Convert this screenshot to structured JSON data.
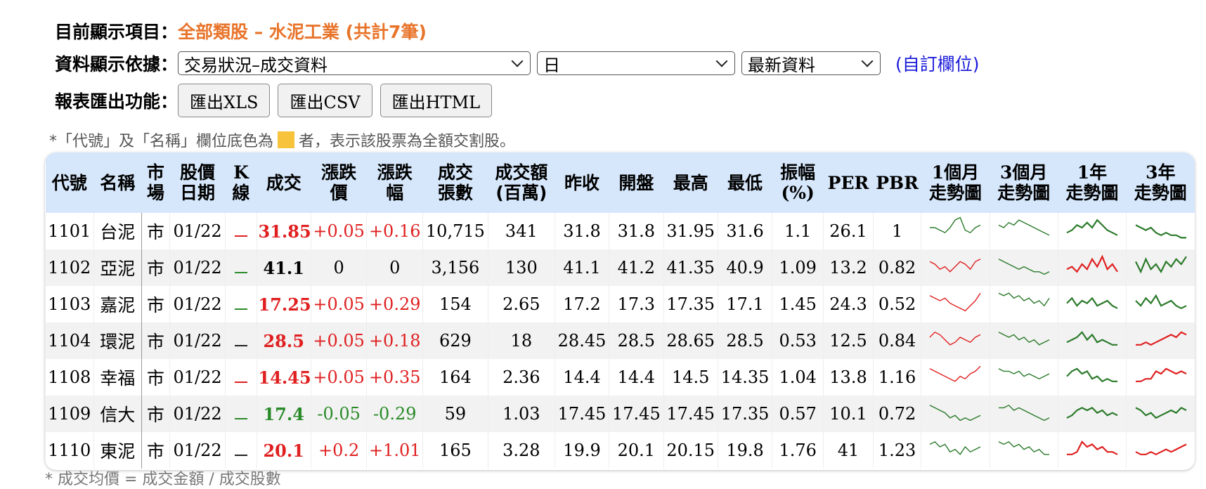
{
  "header": {
    "current_label": "目前顯示項目：",
    "current_value": "全部類股 – 水泥工業 (共計7筆)",
    "basis_label": "資料顯示依據：",
    "select_type": "交易狀況–成交資料",
    "select_period": "日",
    "select_data": "最新資料",
    "custom_link": "(自訂欄位)",
    "export_label": "報表匯出功能：",
    "export_xls": "匯出XLS",
    "export_csv": "匯出CSV",
    "export_html": "匯出HTML"
  },
  "note": {
    "prefix": "*「代號」及「名稱」欄位底色為",
    "suffix": "者，表示該股票為全額交割股。",
    "swatch_color": "#f7c33b"
  },
  "footnote": "* 成交均價 = 成交金額 / 成交股數",
  "columns": [
    "代號",
    "名稱",
    "市場",
    "股價日期",
    "K線",
    "成交",
    "漲跌價",
    "漲跌幅",
    "成交張數",
    "成交額(百萬)",
    "昨收",
    "開盤",
    "最高",
    "最低",
    "振幅(%)",
    "PER",
    "PBR",
    "1個月走勢圖",
    "3個月走勢圖",
    "1年走勢圖",
    "3年走勢圖"
  ],
  "rows": [
    {
      "code": "1101",
      "name": "台泥",
      "market": "市",
      "date": "01/22",
      "price": "31.85",
      "change": "+0.05",
      "pct": "+0.16",
      "vol": "10,715",
      "amt": "341",
      "prev": "31.8",
      "open": "31.8",
      "high": "31.95",
      "low": "31.6",
      "amp": "1.1",
      "per": "26.1",
      "pbr": "1",
      "dir": "up",
      "k": "red"
    },
    {
      "code": "1102",
      "name": "亞泥",
      "market": "市",
      "date": "01/22",
      "price": "41.1",
      "change": "0",
      "pct": "0",
      "vol": "3,156",
      "amt": "130",
      "prev": "41.1",
      "open": "41.2",
      "high": "41.35",
      "low": "40.9",
      "amp": "1.09",
      "per": "13.2",
      "pbr": "0.82",
      "dir": "flat",
      "k": "grn"
    },
    {
      "code": "1103",
      "name": "嘉泥",
      "market": "市",
      "date": "01/22",
      "price": "17.25",
      "change": "+0.05",
      "pct": "+0.29",
      "vol": "154",
      "amt": "2.65",
      "prev": "17.2",
      "open": "17.3",
      "high": "17.35",
      "low": "17.1",
      "amp": "1.45",
      "per": "24.3",
      "pbr": "0.52",
      "dir": "up",
      "k": "grn"
    },
    {
      "code": "1104",
      "name": "環泥",
      "market": "市",
      "date": "01/22",
      "price": "28.5",
      "change": "+0.05",
      "pct": "+0.18",
      "vol": "629",
      "amt": "18",
      "prev": "28.45",
      "open": "28.5",
      "high": "28.65",
      "low": "28.5",
      "amp": "0.53",
      "per": "12.5",
      "pbr": "0.84",
      "dir": "up",
      "k": "blk"
    },
    {
      "code": "1108",
      "name": "幸福",
      "market": "市",
      "date": "01/22",
      "price": "14.45",
      "change": "+0.05",
      "pct": "+0.35",
      "vol": "164",
      "amt": "2.36",
      "prev": "14.4",
      "open": "14.4",
      "high": "14.5",
      "low": "14.35",
      "amp": "1.04",
      "per": "13.8",
      "pbr": "1.16",
      "dir": "up",
      "k": "red"
    },
    {
      "code": "1109",
      "name": "信大",
      "market": "市",
      "date": "01/22",
      "price": "17.4",
      "change": "-0.05",
      "pct": "-0.29",
      "vol": "59",
      "amt": "1.03",
      "prev": "17.45",
      "open": "17.45",
      "high": "17.45",
      "low": "17.35",
      "amp": "0.57",
      "per": "10.1",
      "pbr": "0.72",
      "dir": "dn",
      "k": "grn"
    },
    {
      "code": "1110",
      "name": "東泥",
      "market": "市",
      "date": "01/22",
      "price": "20.1",
      "change": "+0.2",
      "pct": "+1.01",
      "vol": "165",
      "amt": "3.28",
      "prev": "19.9",
      "open": "20.1",
      "high": "20.15",
      "low": "19.8",
      "amp": "1.76",
      "per": "41",
      "pbr": "1.23",
      "dir": "up",
      "k": "blk"
    }
  ],
  "sparklines": [
    {
      "c": [
        "#2a7a2a",
        "#2a7a2a",
        "#2a7a2a",
        "#2a7a2a"
      ],
      "s": [
        [
          5,
          5,
          4,
          3,
          5,
          8,
          9,
          4,
          3,
          5,
          6
        ],
        [
          6,
          5,
          7,
          6,
          8,
          7,
          6,
          5,
          4,
          3,
          2
        ],
        [
          3,
          4,
          6,
          5,
          7,
          5,
          8,
          6,
          4,
          3,
          2
        ],
        [
          6,
          5,
          4,
          5,
          3,
          2,
          3,
          2,
          2,
          1,
          1
        ]
      ]
    },
    {
      "c": [
        "#e02020",
        "#2a7a2a",
        "#e02020",
        "#2a7a2a"
      ],
      "s": [
        [
          6,
          5,
          3,
          4,
          2,
          4,
          6,
          5,
          3,
          6,
          7
        ],
        [
          7,
          6,
          5,
          4,
          3,
          4,
          3,
          2,
          2,
          1,
          2
        ],
        [
          3,
          4,
          2,
          5,
          3,
          7,
          4,
          8,
          3,
          5,
          2
        ],
        [
          6,
          2,
          7,
          3,
          5,
          2,
          6,
          4,
          7,
          5,
          8
        ]
      ]
    },
    {
      "c": [
        "#e02020",
        "#2a7a2a",
        "#2a7a2a",
        "#2a7a2a"
      ],
      "s": [
        [
          7,
          6,
          5,
          6,
          4,
          3,
          2,
          1,
          3,
          5,
          8
        ],
        [
          8,
          7,
          8,
          6,
          7,
          5,
          6,
          4,
          5,
          3,
          6
        ],
        [
          4,
          6,
          3,
          5,
          4,
          6,
          3,
          4,
          5,
          3,
          2
        ],
        [
          5,
          3,
          6,
          4,
          7,
          3,
          4,
          5,
          3,
          2,
          3
        ]
      ]
    },
    {
      "c": [
        "#e02020",
        "#2a7a2a",
        "#2a7a2a",
        "#e02020"
      ],
      "s": [
        [
          5,
          7,
          6,
          4,
          2,
          3,
          5,
          4,
          3,
          5,
          6
        ],
        [
          7,
          6,
          5,
          6,
          4,
          5,
          3,
          4,
          2,
          3,
          4
        ],
        [
          3,
          4,
          5,
          7,
          4,
          6,
          3,
          4,
          3,
          2,
          2
        ],
        [
          2,
          2,
          3,
          2,
          3,
          4,
          5,
          6,
          5,
          7,
          6
        ]
      ]
    },
    {
      "c": [
        "#e02020",
        "#2a7a2a",
        "#2a7a2a",
        "#e02020"
      ],
      "s": [
        [
          7,
          6,
          5,
          4,
          3,
          2,
          4,
          3,
          5,
          6,
          8
        ],
        [
          7,
          6,
          6,
          5,
          6,
          4,
          5,
          4,
          3,
          4,
          5
        ],
        [
          4,
          6,
          7,
          5,
          6,
          3,
          4,
          2,
          3,
          2,
          2
        ],
        [
          2,
          2,
          3,
          3,
          6,
          5,
          7,
          6,
          5,
          6,
          5
        ]
      ]
    },
    {
      "c": [
        "#2a7a2a",
        "#2a7a2a",
        "#2a7a2a",
        "#2a7a2a"
      ],
      "s": [
        [
          7,
          6,
          5,
          4,
          2,
          3,
          1,
          2,
          1,
          2,
          3
        ],
        [
          6,
          6,
          7,
          5,
          6,
          5,
          4,
          3,
          2,
          1,
          2
        ],
        [
          2,
          3,
          5,
          6,
          5,
          6,
          4,
          5,
          3,
          4,
          3
        ],
        [
          6,
          5,
          3,
          4,
          2,
          3,
          4,
          5,
          4,
          6,
          5
        ]
      ]
    },
    {
      "c": [
        "#2a7a2a",
        "#2a7a2a",
        "#e02020",
        "#e02020"
      ],
      "s": [
        [
          6,
          7,
          5,
          6,
          3,
          4,
          2,
          5,
          3,
          4,
          5
        ],
        [
          7,
          6,
          7,
          5,
          6,
          4,
          5,
          3,
          4,
          2,
          2
        ],
        [
          2,
          2,
          3,
          7,
          5,
          6,
          4,
          5,
          3,
          3,
          2
        ],
        [
          3,
          2,
          2,
          3,
          2,
          3,
          4,
          3,
          4,
          5,
          6
        ]
      ]
    }
  ]
}
